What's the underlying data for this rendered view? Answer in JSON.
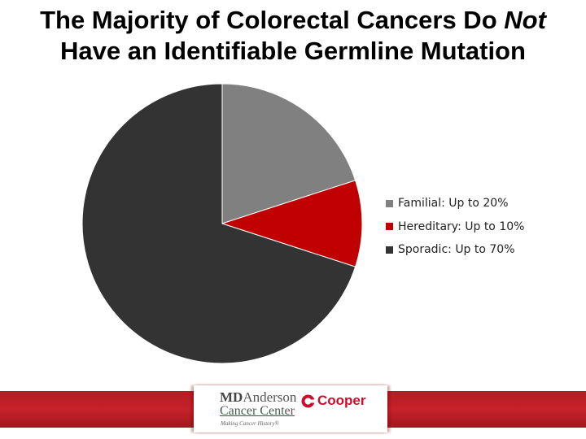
{
  "title": {
    "line1_prefix": "The Majority of Colorectal Cancers Do ",
    "line1_emphasis": "Not",
    "line2": "Have an Identifiable Germline Mutation"
  },
  "chart_data": {
    "type": "pie",
    "title": "The Majority of Colorectal Cancers Do Not Have an Identifiable Germline Mutation",
    "labels": [
      "Familial: Up to 20%",
      "Hereditary: Up to 10%",
      "Sporadic: Up to 70%"
    ],
    "values": [
      20,
      10,
      70
    ],
    "colors": [
      "#808080",
      "#c00000",
      "#333333"
    ],
    "start_angle": "12 o'clock",
    "direction": "clockwise",
    "legend_position": "right"
  },
  "footer": {
    "logo_line1_bold": "MD",
    "logo_line1_rest": "Anderson",
    "logo_line2": "Cancer Center",
    "tagline": "Making Cancer History®",
    "partner": "Cooper",
    "band_color": "#c0202a"
  }
}
